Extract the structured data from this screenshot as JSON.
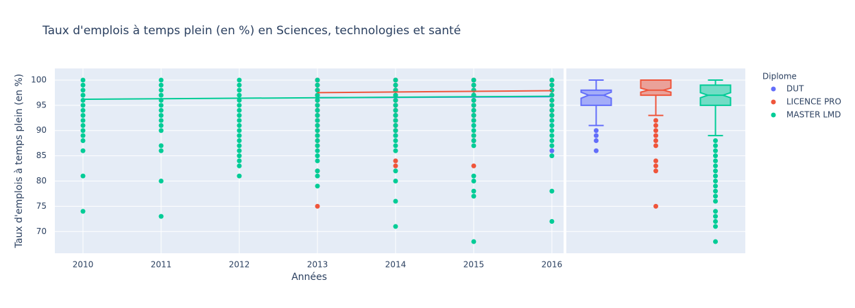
{
  "chart_data": {
    "type": "scatter",
    "title": "Taux d'emplois à temps plein (en %) en Sciences, technologies et santé",
    "x_label": "Années",
    "y_label": "Taux d'emplois à temps plein (en %)",
    "legend_title": "Diplome",
    "legend_position": "right",
    "grid": true,
    "xlim": [
      2009.64,
      2016.15
    ],
    "xticks": [
      2010,
      2011,
      2012,
      2013,
      2014,
      2015,
      2016
    ],
    "ylim": [
      65.7,
      102.3
    ],
    "yticks": [
      70,
      75,
      80,
      85,
      90,
      95,
      100
    ],
    "series": [
      {
        "name": "DUT",
        "color": "#636efa",
        "x": [
          2013,
          2013,
          2013,
          2013,
          2013,
          2013,
          2013,
          2013,
          2013,
          2013,
          2014,
          2014,
          2014,
          2014,
          2014,
          2014,
          2014,
          2014,
          2014,
          2014,
          2014,
          2014,
          2015,
          2015,
          2015,
          2015,
          2015,
          2015,
          2015,
          2015,
          2015,
          2015,
          2015,
          2016,
          2016,
          2016,
          2016,
          2016,
          2016,
          2016,
          2016,
          2016,
          2016,
          2016
        ],
        "values": [
          100,
          99,
          98,
          97,
          96,
          95,
          94,
          93,
          92,
          91,
          100,
          99,
          98,
          97,
          96,
          95,
          94,
          93,
          92,
          91,
          90,
          89,
          100,
          99,
          98,
          97,
          96,
          95,
          94,
          93,
          92,
          91,
          88,
          100,
          99,
          98,
          97,
          96,
          95,
          94,
          93,
          92,
          91,
          86
        ],
        "trend_x": [
          2013,
          2016
        ],
        "trend_values": [
          96.5,
          96.7
        ],
        "box": {
          "upper": 100,
          "q3": 98,
          "median": 97,
          "q1": 95,
          "lower": 91,
          "notch": [
            96.4,
            97.6
          ]
        },
        "box_outliers": [
          90,
          89,
          88,
          86
        ]
      },
      {
        "name": "LICENCE PRO",
        "color": "#EF553B",
        "x": [
          2013,
          2013,
          2013,
          2013,
          2013,
          2013,
          2013,
          2013,
          2013,
          2013,
          2013,
          2013,
          2013,
          2013,
          2013,
          2013,
          2014,
          2014,
          2014,
          2014,
          2014,
          2014,
          2014,
          2014,
          2014,
          2014,
          2014,
          2014,
          2014,
          2015,
          2015,
          2015,
          2015,
          2015,
          2015,
          2015,
          2015,
          2015,
          2015,
          2015,
          2015,
          2016,
          2016,
          2016,
          2016,
          2016,
          2016,
          2016,
          2016
        ],
        "values": [
          100,
          99,
          98,
          97,
          96,
          95,
          94,
          93,
          92,
          91,
          90,
          89,
          88,
          87,
          82,
          75,
          100,
          99,
          98,
          97,
          96,
          95,
          94,
          93,
          92,
          91,
          90,
          84,
          83,
          100,
          99,
          98,
          97,
          96,
          95,
          94,
          93,
          92,
          89,
          88,
          83,
          100,
          99,
          98,
          97,
          96,
          95,
          94,
          93
        ],
        "trend_x": [
          2013,
          2016
        ],
        "trend_values": [
          97.5,
          97.9
        ],
        "box": {
          "upper": 100,
          "q3": 100,
          "median": 98,
          "q1": 97,
          "lower": 93,
          "notch": [
            97.6,
            98.4
          ]
        },
        "box_outliers": [
          92,
          91,
          90,
          89,
          88,
          87,
          84,
          83,
          82,
          75
        ]
      },
      {
        "name": "MASTER LMD",
        "color": "#00cc96",
        "x": [
          2010,
          2010,
          2010,
          2010,
          2010,
          2010,
          2010,
          2010,
          2010,
          2010,
          2010,
          2010,
          2010,
          2010,
          2010,
          2010,
          2011,
          2011,
          2011,
          2011,
          2011,
          2011,
          2011,
          2011,
          2011,
          2011,
          2011,
          2011,
          2011,
          2011,
          2011,
          2012,
          2012,
          2012,
          2012,
          2012,
          2012,
          2012,
          2012,
          2012,
          2012,
          2012,
          2012,
          2012,
          2012,
          2012,
          2012,
          2012,
          2012,
          2012,
          2013,
          2013,
          2013,
          2013,
          2013,
          2013,
          2013,
          2013,
          2013,
          2013,
          2013,
          2013,
          2013,
          2013,
          2013,
          2013,
          2013,
          2013,
          2013,
          2013,
          2014,
          2014,
          2014,
          2014,
          2014,
          2014,
          2014,
          2014,
          2014,
          2014,
          2014,
          2014,
          2014,
          2014,
          2014,
          2014,
          2014,
          2014,
          2014,
          2015,
          2015,
          2015,
          2015,
          2015,
          2015,
          2015,
          2015,
          2015,
          2015,
          2015,
          2015,
          2015,
          2015,
          2015,
          2015,
          2015,
          2015,
          2015,
          2016,
          2016,
          2016,
          2016,
          2016,
          2016,
          2016,
          2016,
          2016,
          2016,
          2016,
          2016,
          2016,
          2016,
          2016,
          2016,
          2016
        ],
        "values": [
          100,
          99,
          98,
          97,
          96,
          95,
          94,
          93,
          92,
          91,
          90,
          89,
          88,
          86,
          81,
          74,
          100,
          99,
          98,
          97,
          96,
          95,
          94,
          93,
          92,
          91,
          90,
          87,
          86,
          80,
          73,
          100,
          99,
          98,
          97,
          96,
          95,
          94,
          93,
          92,
          91,
          90,
          89,
          88,
          87,
          86,
          85,
          84,
          83,
          81,
          100,
          99,
          98,
          97,
          96,
          95,
          94,
          93,
          92,
          91,
          90,
          89,
          88,
          87,
          86,
          85,
          84,
          82,
          81,
          79,
          100,
          99,
          98,
          97,
          96,
          95,
          94,
          93,
          92,
          91,
          90,
          89,
          88,
          87,
          86,
          82,
          80,
          76,
          71,
          100,
          99,
          98,
          97,
          96,
          95,
          94,
          93,
          92,
          91,
          90,
          89,
          88,
          87,
          81,
          80,
          78,
          77,
          68,
          100,
          99,
          98,
          97,
          96,
          95,
          94,
          93,
          92,
          91,
          90,
          89,
          88,
          87,
          85,
          78,
          72
        ],
        "trend_x": [
          2010,
          2016
        ],
        "trend_values": [
          96.2,
          96.8
        ],
        "box": {
          "upper": 100,
          "q3": 99,
          "median": 97,
          "q1": 95,
          "lower": 89,
          "notch": [
            96.5,
            97.5
          ]
        },
        "box_outliers": [
          88,
          87,
          86,
          85,
          84,
          83,
          82,
          81,
          80,
          79,
          78,
          77,
          76,
          74,
          73,
          72,
          71,
          68
        ]
      }
    ]
  }
}
